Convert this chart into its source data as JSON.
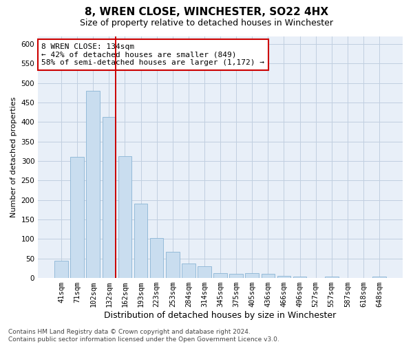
{
  "title": "8, WREN CLOSE, WINCHESTER, SO22 4HX",
  "subtitle": "Size of property relative to detached houses in Winchester",
  "xlabel": "Distribution of detached houses by size in Winchester",
  "ylabel": "Number of detached properties",
  "categories": [
    "41sqm",
    "71sqm",
    "102sqm",
    "132sqm",
    "162sqm",
    "193sqm",
    "223sqm",
    "253sqm",
    "284sqm",
    "314sqm",
    "345sqm",
    "375sqm",
    "405sqm",
    "436sqm",
    "466sqm",
    "496sqm",
    "527sqm",
    "557sqm",
    "587sqm",
    "618sqm",
    "648sqm"
  ],
  "values": [
    45,
    311,
    480,
    413,
    313,
    190,
    103,
    68,
    37,
    30,
    13,
    11,
    12,
    10,
    5,
    3,
    1,
    4,
    1,
    1,
    4
  ],
  "bar_color": "#c9ddef",
  "bar_edge_color": "#8ab4d4",
  "vline_index": 3,
  "vline_color": "#cc0000",
  "annotation_text": "8 WREN CLOSE: 134sqm\n← 42% of detached houses are smaller (849)\n58% of semi-detached houses are larger (1,172) →",
  "annotation_box_color": "#ffffff",
  "annotation_box_edge": "#cc0000",
  "ylim": [
    0,
    620
  ],
  "yticks": [
    0,
    50,
    100,
    150,
    200,
    250,
    300,
    350,
    400,
    450,
    500,
    550,
    600
  ],
  "plot_bg_color": "#e8eff8",
  "background_color": "#ffffff",
  "grid_color": "#c0cfe0",
  "title_fontsize": 11,
  "subtitle_fontsize": 9,
  "xlabel_fontsize": 9,
  "ylabel_fontsize": 8,
  "tick_fontsize": 7.5,
  "annotation_fontsize": 8,
  "footer_fontsize": 6.5,
  "footer_text": "Contains HM Land Registry data © Crown copyright and database right 2024.\nContains public sector information licensed under the Open Government Licence v3.0."
}
